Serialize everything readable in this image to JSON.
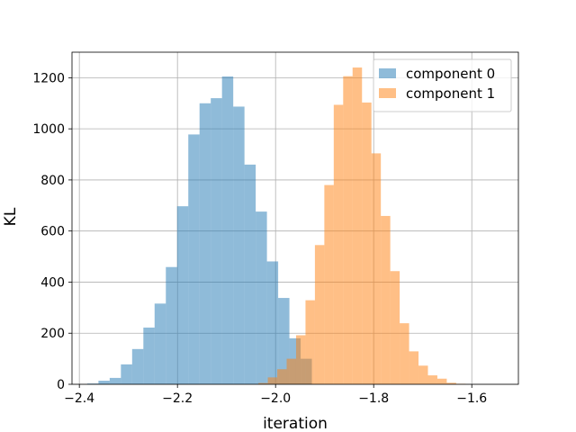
{
  "chart_data": {
    "type": "histogram",
    "title": "",
    "xlabel": "iteration",
    "ylabel": "KL",
    "xlim": [
      -2.415,
      -1.505
    ],
    "ylim": [
      0,
      1300
    ],
    "xticks": [
      -2.4,
      -2.2,
      -2.0,
      -1.8,
      -1.6
    ],
    "xtick_labels": [
      "−2.4",
      "−2.2",
      "−2.0",
      "−1.8",
      "−1.6"
    ],
    "yticks": [
      0,
      200,
      400,
      600,
      800,
      1000,
      1200
    ],
    "ytick_labels": [
      "0",
      "200",
      "400",
      "600",
      "800",
      "1000",
      "1200"
    ],
    "grid": true,
    "legend_position": "top-right",
    "series": [
      {
        "name": "component 0",
        "color": "#1f77b4",
        "alpha": 0.5,
        "bin_start": -2.384,
        "bin_width": 0.0229,
        "counts": [
          3,
          14,
          25,
          78,
          138,
          222,
          316,
          459,
          697,
          978,
          1100,
          1120,
          1205,
          1087,
          860,
          676,
          481,
          338,
          180,
          100
        ]
      },
      {
        "name": "component 1",
        "color": "#ff7f0e",
        "alpha": 0.5,
        "bin_start": -2.035,
        "bin_width": 0.0192,
        "counts": [
          5,
          27,
          59,
          100,
          192,
          329,
          545,
          780,
          1094,
          1206,
          1240,
          1103,
          904,
          659,
          443,
          239,
          129,
          73,
          35,
          22,
          6,
          2
        ]
      }
    ]
  }
}
